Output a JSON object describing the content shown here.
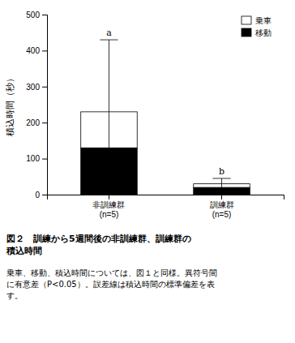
{
  "chart_data": {
    "type": "bar",
    "stacked": true,
    "title": "図２　訓練から5週間後の非訓練群、訓練群の\n積込時間",
    "caption": "乗車、移動、積込時間については、図１と同様。異符号間\nに有意差（P<0.05）。誤差線は積込時間の標準偏差を表\nす。",
    "y_label": "積込時間（秒）",
    "categories": [
      "非訓練群\n(n=5)",
      "訓練群\n(n=5)"
    ],
    "series": [
      {
        "name": "移動",
        "color": "black",
        "values": [
          130,
          20
        ]
      },
      {
        "name": "乗車",
        "color": "white",
        "values": [
          100,
          10
        ]
      }
    ],
    "errors": [
      200,
      15
    ],
    "annotations": [
      "a",
      "b"
    ],
    "ylim": [
      0,
      500
    ],
    "yticks": [
      0,
      100,
      200,
      300,
      400,
      500
    ],
    "grid": false,
    "legend": "upper right"
  }
}
